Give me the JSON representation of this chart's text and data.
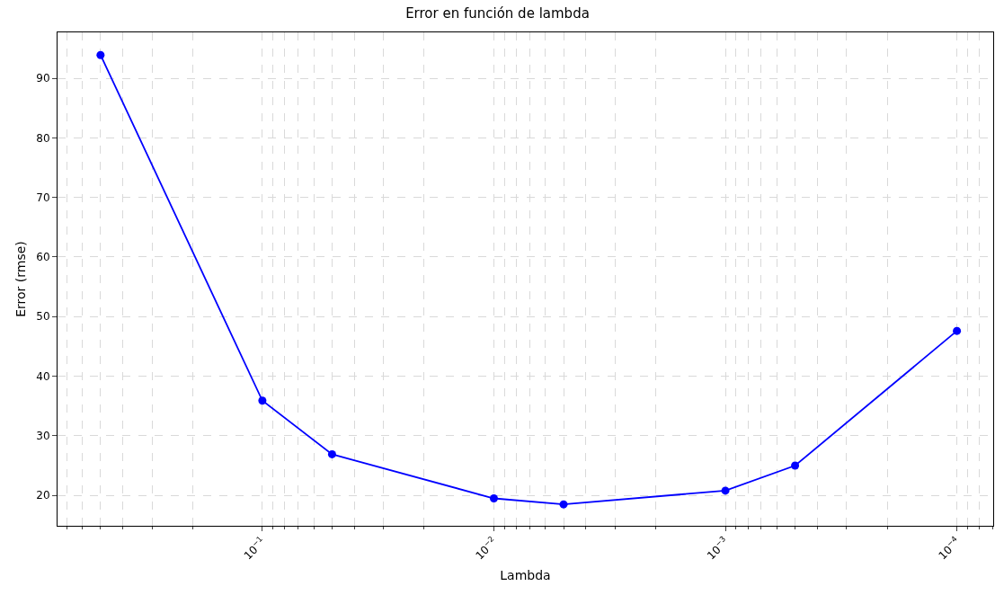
{
  "chart_data": {
    "type": "line",
    "title": "Error en función de lambda",
    "xlabel": "Lambda",
    "ylabel": "Error (rmse)",
    "x": [
      0.5,
      0.1,
      0.05,
      0.01,
      0.005,
      0.001,
      0.0005,
      0.0001
    ],
    "series": [
      {
        "color": "#0000ff",
        "values": [
          93.9,
          35.9,
          26.9,
          19.5,
          18.5,
          20.8,
          25,
          47.6
        ]
      }
    ],
    "log": "x",
    "xlim": [
      0.767,
      6.97e-05
    ],
    "ylim": [
      14.9,
      97.7
    ],
    "xticks": [
      {
        "value": 0.1,
        "label": "10$^{−1}$"
      },
      {
        "value": 0.01,
        "label": "10$^{−2}$"
      },
      {
        "value": 0.001,
        "label": "10$^{−3}$"
      },
      {
        "value": 0.0001,
        "label": "10$^{−4}$"
      }
    ],
    "yticks": [
      20,
      30,
      40,
      50,
      60,
      70,
      80,
      90
    ],
    "grid": true,
    "marker": "circle",
    "line_style": "solid"
  }
}
